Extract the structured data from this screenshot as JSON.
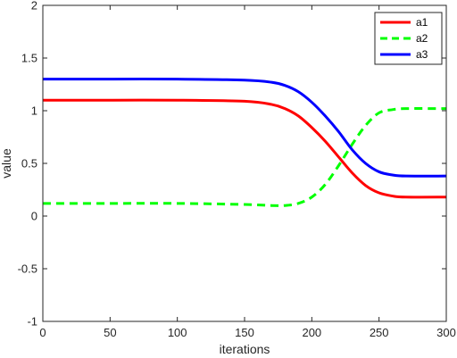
{
  "chart_data": {
    "type": "line",
    "xlabel": "iterations",
    "ylabel": "value",
    "xlim": [
      0,
      300
    ],
    "ylim": [
      -1,
      2
    ],
    "xticks": [
      0,
      50,
      100,
      150,
      200,
      250,
      300
    ],
    "yticks": [
      -1,
      -0.5,
      0,
      0.5,
      1,
      1.5,
      2
    ],
    "grid": false,
    "legend_position": "top-right",
    "series": [
      {
        "name": "a1",
        "color": "#ff0000",
        "style": "solid",
        "x": [
          0,
          50,
          100,
          150,
          170,
          180,
          190,
          200,
          210,
          220,
          230,
          240,
          250,
          260,
          270,
          300
        ],
        "y": [
          1.1,
          1.1,
          1.1,
          1.09,
          1.06,
          1.02,
          0.95,
          0.84,
          0.71,
          0.56,
          0.41,
          0.29,
          0.22,
          0.19,
          0.18,
          0.18
        ]
      },
      {
        "name": "a2",
        "color": "#00ff00",
        "style": "dashed",
        "x": [
          0,
          50,
          100,
          150,
          170,
          180,
          190,
          200,
          210,
          220,
          230,
          240,
          250,
          260,
          270,
          300
        ],
        "y": [
          0.12,
          0.12,
          0.12,
          0.11,
          0.1,
          0.1,
          0.12,
          0.18,
          0.3,
          0.48,
          0.68,
          0.86,
          0.98,
          1.01,
          1.02,
          1.02
        ]
      },
      {
        "name": "a3",
        "color": "#0000ff",
        "style": "solid",
        "x": [
          0,
          50,
          100,
          150,
          170,
          180,
          190,
          200,
          210,
          220,
          230,
          240,
          250,
          260,
          270,
          300
        ],
        "y": [
          1.3,
          1.3,
          1.3,
          1.29,
          1.27,
          1.24,
          1.18,
          1.08,
          0.95,
          0.8,
          0.63,
          0.5,
          0.42,
          0.39,
          0.38,
          0.38
        ]
      }
    ]
  }
}
